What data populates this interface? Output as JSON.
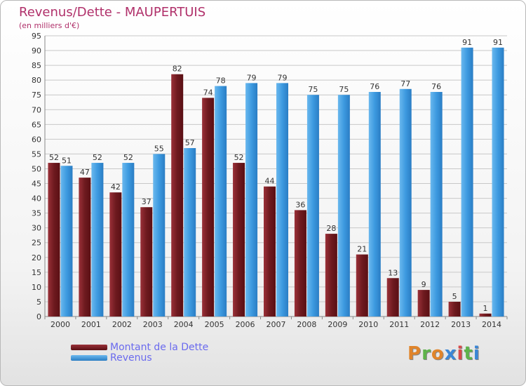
{
  "header": {
    "title": "Revenus/Dette - MAUPERTUIS",
    "subtitle": "(en milliers d'€)"
  },
  "logo": {
    "text": "Proxiti",
    "colors": [
      "#e0842a",
      "#5db34a",
      "#e0842a",
      "#3a86d6",
      "#d84a4a",
      "#5db34a",
      "#3a86d6"
    ]
  },
  "colors": {
    "dette": "#6e1a1f",
    "revenus": "#3d9ae0",
    "grid": "#c8c8c8",
    "axis_text": "#333333",
    "label_text": "#333333"
  },
  "chart_data": {
    "type": "bar",
    "title": "Revenus/Dette - MAUPERTUIS",
    "subtitle": "(en milliers d'€)",
    "categories": [
      "2000",
      "2001",
      "2002",
      "2003",
      "2004",
      "2005",
      "2006",
      "2007",
      "2008",
      "2009",
      "2010",
      "2011",
      "2012",
      "2013",
      "2014"
    ],
    "series": [
      {
        "name": "Montant de la Dette",
        "values": [
          52,
          47,
          42,
          37,
          82,
          74,
          52,
          44,
          36,
          28,
          21,
          13,
          9,
          5,
          1
        ]
      },
      {
        "name": "Revenus",
        "values": [
          51,
          52,
          52,
          55,
          57,
          78,
          79,
          79,
          75,
          75,
          76,
          77,
          76,
          91,
          91
        ]
      }
    ],
    "ylim": [
      0,
      95
    ],
    "yticks": [
      0,
      5,
      10,
      15,
      20,
      25,
      30,
      35,
      40,
      45,
      50,
      55,
      60,
      65,
      70,
      75,
      80,
      85,
      90,
      95
    ],
    "grid": true,
    "legend_position": "bottom-left"
  }
}
